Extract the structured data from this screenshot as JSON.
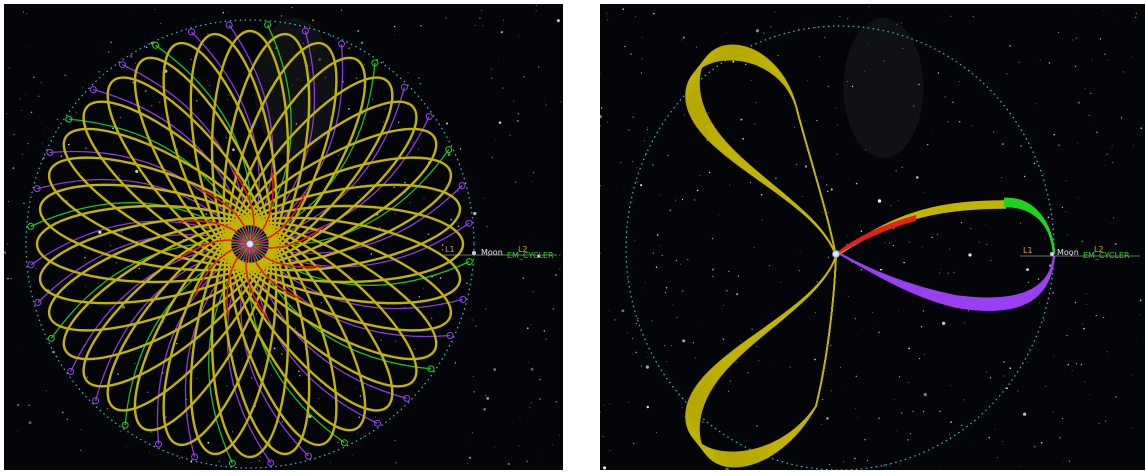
{
  "views": [
    {
      "id": "left",
      "labels": {
        "l1": "L1",
        "l2": "L2",
        "moon": "Moon",
        "cycler": "EM_CYCLER"
      },
      "petal_count": 18,
      "color_arcs": "#8a2be2",
      "color_arcs_alt": "#2bd12b"
    },
    {
      "id": "right",
      "labels": {
        "l1": "L1",
        "l2": "L2",
        "moon": "Moon",
        "cycler": "EM_CYCLER"
      }
    }
  ],
  "colors": {
    "background": "#030508",
    "lobe": "#c2b400",
    "green": "#1fd31f",
    "purple": "#9b3ff2",
    "red": "#e81c1c",
    "cyan_dotted": "#2bc9c9",
    "label_moon": "#e8e8e8",
    "label_cycler": "#29d629",
    "label_lagrange": "#e0a030"
  }
}
